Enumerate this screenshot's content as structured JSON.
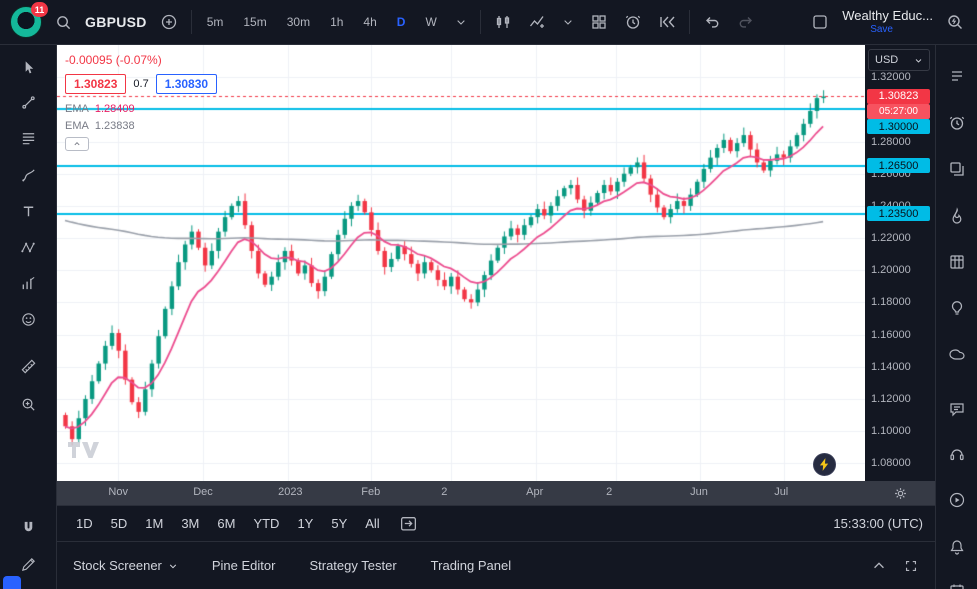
{
  "topbar": {
    "notification_count": "11",
    "symbol": "GBPUSD",
    "intervals": [
      "5m",
      "15m",
      "30m",
      "1h",
      "4h",
      "D",
      "W"
    ],
    "active_interval": "D",
    "layout_name": "Wealthy Educ...",
    "save_label": "Save"
  },
  "legend": {
    "change_text": "-0.00095 (-0.07%)",
    "bid": "1.30823",
    "spread": "0.7",
    "ask": "1.30830",
    "indicators": [
      {
        "label": "EMA",
        "value": "1.28409"
      },
      {
        "label": "EMA",
        "value": "1.23838"
      }
    ]
  },
  "price_scale": {
    "currency": "USD",
    "labels": [
      {
        "text": "1.32000",
        "price": 1.32
      },
      {
        "text": "1.28000",
        "price": 1.28
      },
      {
        "text": "1.26000",
        "price": 1.26
      },
      {
        "text": "1.24000",
        "price": 1.24
      },
      {
        "text": "1.22000",
        "price": 1.22
      },
      {
        "text": "1.20000",
        "price": 1.2
      },
      {
        "text": "1.18000",
        "price": 1.18
      },
      {
        "text": "1.16000",
        "price": 1.16
      },
      {
        "text": "1.14000",
        "price": 1.14
      },
      {
        "text": "1.12000",
        "price": 1.12
      },
      {
        "text": "1.10000",
        "price": 1.1
      },
      {
        "text": "1.08000",
        "price": 1.08
      }
    ],
    "last_price": {
      "text": "1.30823",
      "countdown": "05:27:00",
      "price": 1.30823
    },
    "levels": [
      {
        "text": "1.30000",
        "price": 1.3
      },
      {
        "text": "1.26500",
        "price": 1.265
      },
      {
        "text": "1.23500",
        "price": 1.235
      }
    ]
  },
  "time_scale": {
    "labels": [
      {
        "text": "Nov",
        "x": 0.076
      },
      {
        "text": "Dec",
        "x": 0.181
      },
      {
        "text": "2023",
        "x": 0.286
      },
      {
        "text": "Feb",
        "x": 0.389
      },
      {
        "text": "2",
        "x": 0.488
      },
      {
        "text": "Apr",
        "x": 0.593
      },
      {
        "text": "2",
        "x": 0.692
      },
      {
        "text": "Jun",
        "x": 0.796
      },
      {
        "text": "Jul",
        "x": 0.9
      }
    ]
  },
  "chart_data": {
    "type": "candlestick",
    "title": "GBPUSD daily chart with two EMAs and three horizontal levels",
    "symbol": "GBPUSD",
    "interval": "1D",
    "axis_price_top": 1.34,
    "axis_price_bottom": 1.069,
    "levels": [
      1.3,
      1.265,
      1.235
    ],
    "last_price": 1.30823,
    "ema_fast_value": 1.28409,
    "ema_slow_value": 1.23838,
    "ema_fast_period": 10,
    "ema_slow_period": 250,
    "ema_slow_start": 1.232,
    "first_open": 1.11,
    "closes": [
      1.103,
      1.095,
      1.108,
      1.12,
      1.131,
      1.142,
      1.153,
      1.161,
      1.15,
      1.132,
      1.118,
      1.112,
      1.126,
      1.142,
      1.159,
      1.176,
      1.19,
      1.205,
      1.216,
      1.224,
      1.214,
      1.203,
      1.212,
      1.224,
      1.233,
      1.24,
      1.243,
      1.228,
      1.212,
      1.198,
      1.191,
      1.196,
      1.205,
      1.212,
      1.206,
      1.198,
      1.203,
      1.192,
      1.187,
      1.196,
      1.21,
      1.222,
      1.232,
      1.24,
      1.243,
      1.236,
      1.225,
      1.212,
      1.202,
      1.207,
      1.215,
      1.21,
      1.204,
      1.198,
      1.205,
      1.2,
      1.194,
      1.19,
      1.196,
      1.188,
      1.182,
      1.18,
      1.188,
      1.197,
      1.206,
      1.214,
      1.221,
      1.226,
      1.222,
      1.228,
      1.233,
      1.238,
      1.234,
      1.24,
      1.246,
      1.251,
      1.253,
      1.244,
      1.237,
      1.242,
      1.248,
      1.253,
      1.249,
      1.255,
      1.26,
      1.264,
      1.267,
      1.257,
      1.247,
      1.239,
      1.233,
      1.238,
      1.243,
      1.24,
      1.247,
      1.255,
      1.263,
      1.27,
      1.276,
      1.281,
      1.274,
      1.279,
      1.284,
      1.275,
      1.267,
      1.262,
      1.268,
      1.272,
      1.27,
      1.277,
      1.284,
      1.291,
      1.299,
      1.307,
      1.308
    ],
    "colors": {
      "up": "#089981",
      "down": "#f23645",
      "ema_fast": "#ec4d8f",
      "ema_slow": "#9aa0aa",
      "level": "#00bce6",
      "grid": "#eef1f6"
    }
  },
  "ranges": {
    "items": [
      "1D",
      "5D",
      "1M",
      "3M",
      "6M",
      "YTD",
      "1Y",
      "5Y",
      "All"
    ],
    "clock": "15:33:00 (UTC)"
  },
  "footer": {
    "tabs": [
      "Stock Screener",
      "Pine Editor",
      "Strategy Tester",
      "Trading Panel"
    ]
  }
}
